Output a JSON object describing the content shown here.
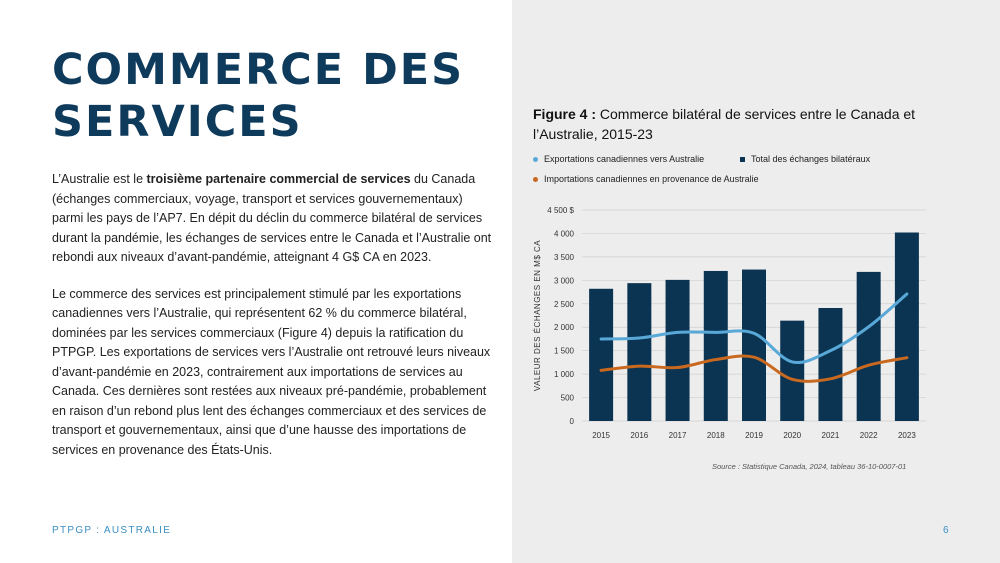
{
  "title_line1": "COMMERCE DES",
  "title_line2": "SERVICES",
  "para1": {
    "pre": "L’Australie est le ",
    "bold": "troisième partenaire commercial de services",
    "post": " du Canada (échanges commerciaux, voyage, transport et services gouvernementaux) parmi les pays de l’AP7. En dépit du déclin du commerce bilatéral de services durant la pandémie, les échanges de services entre le Canada et l’Australie ont rebondi aux niveaux d’avant-pandémie, atteignant 4 G$ CA en 2023."
  },
  "para2": "Le commerce des services est principalement stimulé par les exportations canadiennes vers l’Australie, qui représentent 62 % du commerce bilatéral, dominées par les services commerciaux (Figure 4) depuis la ratification du PTPGP. Les exportations de services vers l’Australie ont retrouvé leurs niveaux d’avant-pandémie en 2023, contrairement aux importations de services au Canada.  Ces dernières sont restées aux niveaux pré-pandémie, probablement en raison d’un rebond plus lent des échanges commerciaux et des services de transport et gouvernementaux, ainsi que d’une hausse des importations de services en provenance des États-Unis.",
  "figure": {
    "label": "Figure 4 :",
    "title": " Commerce bilatéral de services entre le Canada et l’Australie, 2015-23"
  },
  "footer": {
    "left": "PTPGP : AUSTRALIE",
    "page": "6"
  },
  "source": "Source : Statistique Canada, 2024, tableau 36-10-0007-01",
  "colors": {
    "navy": "#0e3a5c",
    "bars": "#0b3452",
    "exports": "#58a8d8",
    "imports": "#c9691f",
    "accent": "#3a8fc4"
  },
  "chart_data": {
    "type": "bar",
    "categories": [
      "2015",
      "2016",
      "2017",
      "2018",
      "2019",
      "2020",
      "2021",
      "2022",
      "2023"
    ],
    "ylabel": "VALEUR DES ÉCHANGES EN M$ CA",
    "ylim": [
      0,
      4500
    ],
    "yticks": [
      0,
      500,
      1000,
      1500,
      2000,
      2500,
      3000,
      3500,
      4000,
      4500
    ],
    "ytick_labels": [
      "0",
      "500",
      "1 000",
      "1 500",
      "2 000",
      "2 500",
      "3 000",
      "3 500",
      "4 000",
      "4 500 $"
    ],
    "grid": true,
    "legend_position": "top",
    "series": [
      {
        "name": "Total des échanges bilatéraux",
        "type": "bar",
        "values": [
          2820,
          2940,
          3010,
          3200,
          3230,
          2140,
          2410,
          3180,
          4020
        ]
      },
      {
        "name": "Exportations canadiennes vers Australie",
        "type": "line",
        "values": [
          1750,
          1770,
          1890,
          1890,
          1870,
          1260,
          1500,
          2010,
          2710
        ]
      },
      {
        "name": "Importations canadiennes en provenance de Australie",
        "type": "line",
        "values": [
          1080,
          1170,
          1140,
          1310,
          1360,
          890,
          900,
          1190,
          1350
        ]
      }
    ]
  }
}
